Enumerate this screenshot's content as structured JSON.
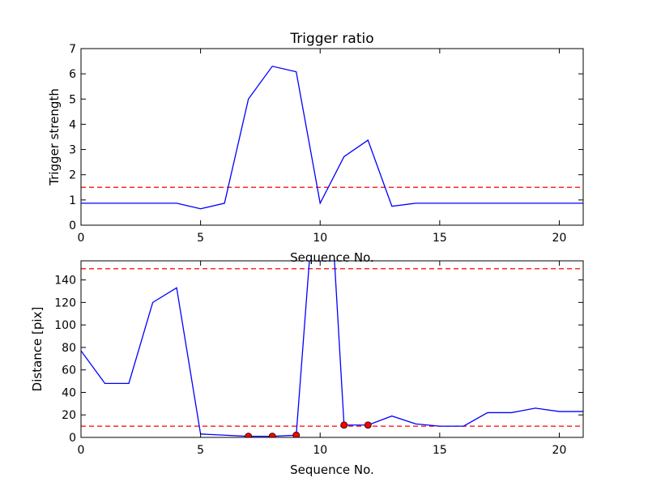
{
  "chart_data": [
    {
      "type": "line",
      "title": "Trigger ratio",
      "xlabel": "Sequence No.",
      "ylabel": "Trigger strength",
      "xlim": [
        0,
        21
      ],
      "ylim": [
        0,
        7
      ],
      "xticks": [
        0,
        5,
        10,
        15,
        20
      ],
      "yticks": [
        0,
        1,
        2,
        3,
        4,
        5,
        6,
        7
      ],
      "series": [
        {
          "color": "#0000ff",
          "x": [
            0,
            1,
            2,
            3,
            4,
            5,
            6,
            7,
            8,
            9,
            10,
            11,
            12,
            13,
            14,
            15,
            16,
            17,
            18,
            19,
            20,
            21
          ],
          "values": [
            0.87,
            0.87,
            0.87,
            0.87,
            0.87,
            0.65,
            0.87,
            5.0,
            6.3,
            6.08,
            0.87,
            2.72,
            3.37,
            0.75,
            0.87,
            0.87,
            0.87,
            0.87,
            0.87,
            0.87,
            0.87,
            0.87
          ]
        }
      ],
      "threshold_lines": [
        {
          "y": 1.5,
          "color": "#ff0000",
          "style": "dashed"
        }
      ],
      "grid": false
    },
    {
      "type": "line",
      "title": "",
      "xlabel": "Sequence No.",
      "ylabel": "Distance [pix]",
      "xlim": [
        0,
        21
      ],
      "ylim": [
        0,
        157
      ],
      "xticks": [
        0,
        5,
        10,
        15,
        20
      ],
      "yticks": [
        0,
        20,
        40,
        60,
        80,
        100,
        120,
        140
      ],
      "series": [
        {
          "color": "#0000ff",
          "x": [
            0,
            1,
            2,
            3,
            4,
            5,
            6,
            7,
            8,
            9,
            9.55,
            10.6,
            11,
            12,
            13,
            14,
            15,
            16,
            17,
            18,
            19,
            20,
            21
          ],
          "values": [
            77,
            48,
            48,
            120,
            133,
            3,
            2,
            1,
            1,
            2,
            157,
            157,
            11,
            11,
            19,
            12,
            10,
            10,
            22,
            22,
            26,
            23,
            23
          ]
        }
      ],
      "markers": {
        "color": "#ff0000",
        "x": [
          7,
          8,
          9,
          11,
          12
        ],
        "values": [
          1,
          1,
          2,
          11,
          11
        ]
      },
      "threshold_lines": [
        {
          "y": 10,
          "color": "#ff0000",
          "style": "dashed"
        },
        {
          "y": 150,
          "color": "#ff0000",
          "style": "dashed"
        }
      ],
      "grid": false
    }
  ]
}
